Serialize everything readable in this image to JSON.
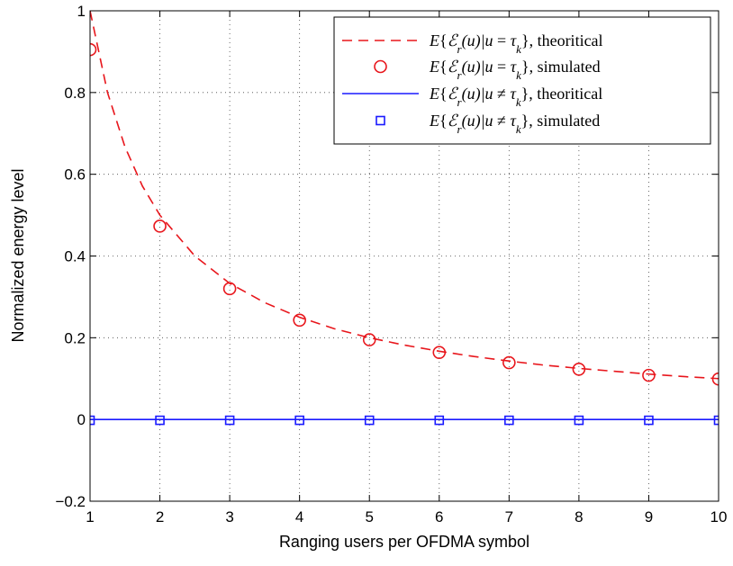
{
  "chart_data": {
    "type": "line",
    "title": "",
    "xlabel": "Ranging users per OFDMA symbol",
    "ylabel": "Normalized energy level",
    "xlim": [
      1,
      10
    ],
    "ylim": [
      -0.2,
      1
    ],
    "xticks": [
      "1",
      "2",
      "3",
      "4",
      "5",
      "6",
      "7",
      "8",
      "9",
      "10"
    ],
    "yticks": [
      "−0.2",
      "0",
      "0.2",
      "0.4",
      "0.6",
      "0.8",
      "1"
    ],
    "grid": true,
    "legend_position": "top-right",
    "series": [
      {
        "name": "E{Ẽr(u)|u = τk}, theoritical",
        "style": "dashed-line",
        "color": "#e8161c",
        "x": [
          1,
          1.25,
          1.5,
          1.75,
          2,
          2.5,
          3,
          3.5,
          4,
          4.5,
          5,
          5.5,
          6,
          6.5,
          7,
          7.5,
          8,
          8.5,
          9,
          9.5,
          10
        ],
        "values": [
          1.0,
          0.8,
          0.667,
          0.571,
          0.5,
          0.4,
          0.333,
          0.286,
          0.25,
          0.222,
          0.2,
          0.182,
          0.167,
          0.154,
          0.143,
          0.133,
          0.125,
          0.118,
          0.111,
          0.105,
          0.1
        ]
      },
      {
        "name": "E{Ẽr(u)|u = τk}, simulated",
        "style": "circle-markers",
        "color": "#e8161c",
        "x": [
          1,
          2,
          3,
          4,
          5,
          6,
          7,
          8,
          9,
          10
        ],
        "values": [
          0.905,
          0.473,
          0.32,
          0.243,
          0.195,
          0.164,
          0.139,
          0.123,
          0.108,
          0.099
        ]
      },
      {
        "name": "E{Ẽr(u)|u ≠ τk}, theoritical",
        "style": "solid-line",
        "color": "#1a1aff",
        "x": [
          1,
          10
        ],
        "values": [
          0,
          0
        ]
      },
      {
        "name": "E{Ẽr(u)|u ≠ τk}, simulated",
        "style": "square-markers",
        "color": "#1a1aff",
        "x": [
          1,
          2,
          3,
          4,
          5,
          6,
          7,
          8,
          9,
          10
        ],
        "values": [
          -0.002,
          -0.002,
          -0.002,
          -0.002,
          -0.002,
          -0.002,
          -0.002,
          -0.002,
          -0.002,
          -0.002
        ]
      }
    ],
    "legend": [
      {
        "E": "E",
        "brace_open": "{",
        "sym": "ℰ",
        "sub": "r",
        "arg": "(u)|u",
        "rel": " = ",
        "tau": "τ",
        "tsub": "k",
        "tail": "}, theoritical"
      },
      {
        "E": "E",
        "brace_open": "{",
        "sym": "ℰ",
        "sub": "r",
        "arg": "(u)|u",
        "rel": " = ",
        "tau": "τ",
        "tsub": "k",
        "tail": "}, simulated"
      },
      {
        "E": "E",
        "brace_open": "{",
        "sym": "ℰ",
        "sub": "r",
        "arg": "(u)|u",
        "rel": " ≠ ",
        "tau": "τ",
        "tsub": "k",
        "tail": "}, theoritical"
      },
      {
        "E": "E",
        "brace_open": "{",
        "sym": "ℰ",
        "sub": "r",
        "arg": "(u)|u",
        "rel": " ≠ ",
        "tau": "τ",
        "tsub": "k",
        "tail": "}, simulated"
      }
    ]
  }
}
